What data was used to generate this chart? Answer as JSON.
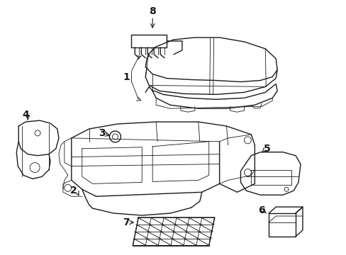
{
  "background": "#ffffff",
  "line_color": "#1a1a1a",
  "lw_main": 1.0,
  "lw_detail": 0.6,
  "figsize": [
    4.89,
    3.6
  ],
  "dpi": 100
}
